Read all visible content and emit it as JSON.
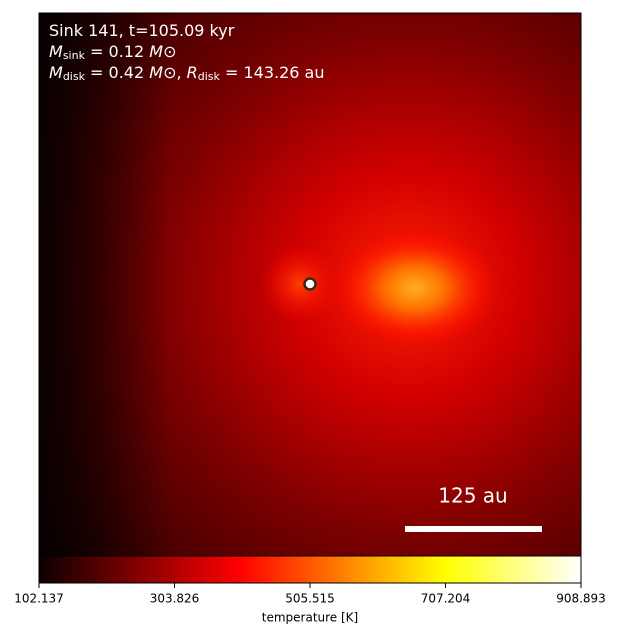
{
  "chart_data": {
    "type": "image",
    "annotation_lines": [
      [
        "Sink 141, t=105.09 kyr"
      ],
      [
        "M",
        "sink",
        " = 0.12 ",
        "M",
        "⊙"
      ],
      [
        "M",
        "disk",
        " = 0.42 ",
        "M",
        "⊙",
        ", ",
        "R",
        "disk",
        " = 143.26 au"
      ]
    ],
    "scale_bar_label": "125 au",
    "colorbar_label": "temperature [K]",
    "clim": [
      102.137,
      908.893
    ],
    "colorbar_ticks": [
      102.137,
      303.826,
      505.515,
      707.204,
      908.893
    ]
  }
}
